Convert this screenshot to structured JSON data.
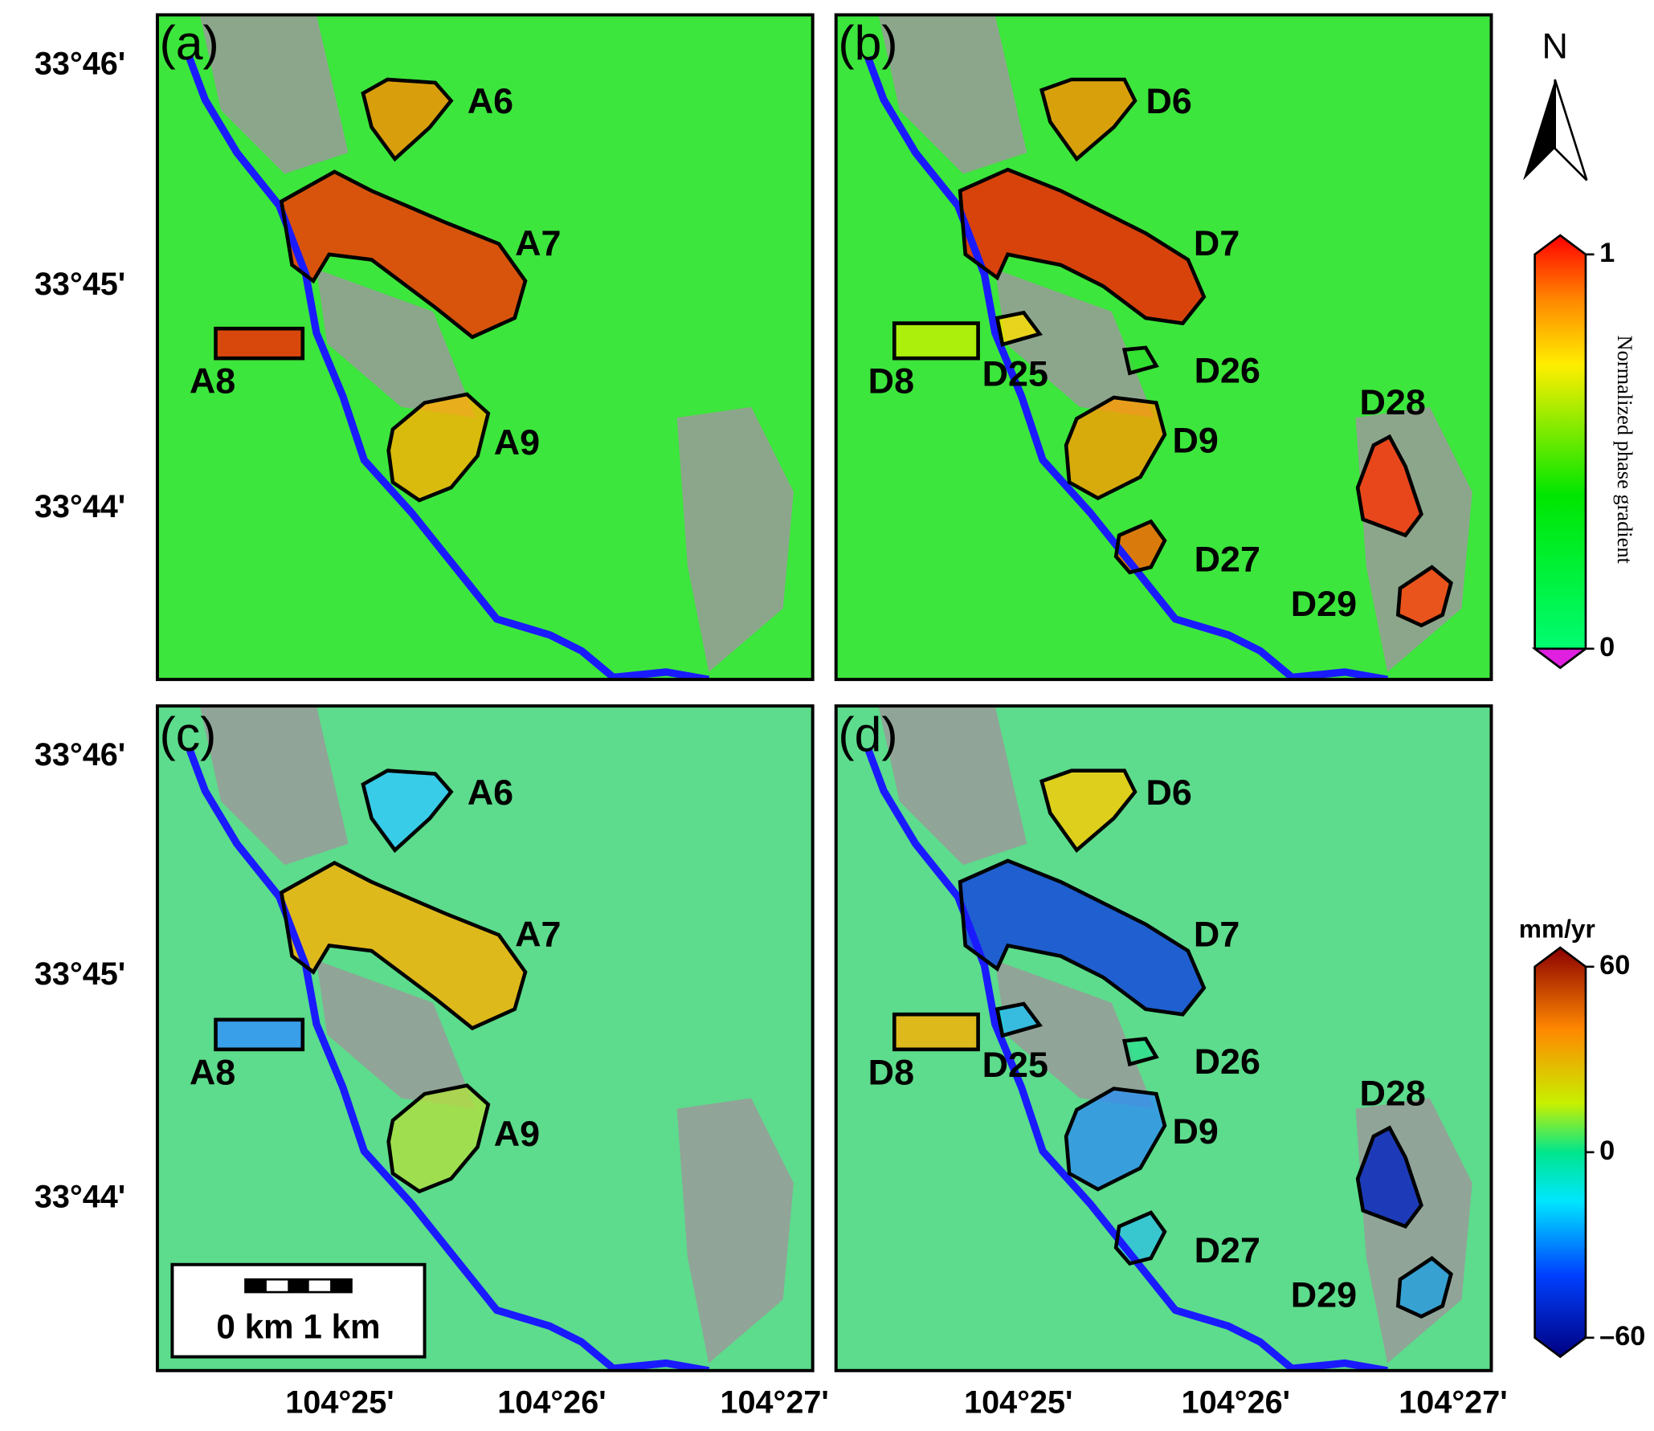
{
  "panels": [
    {
      "label": "(a)",
      "areas": [
        "A6",
        "A7",
        "A8",
        "A9"
      ]
    },
    {
      "label": "(b)",
      "areas": [
        "D6",
        "D7",
        "D8",
        "D25",
        "D26",
        "D9",
        "D28",
        "D27",
        "D29"
      ]
    },
    {
      "label": "(c)",
      "areas": [
        "A6",
        "A7",
        "A8",
        "A9"
      ]
    },
    {
      "label": "(d)",
      "areas": [
        "D6",
        "D7",
        "D8",
        "D25",
        "D26",
        "D9",
        "D28",
        "D27",
        "D29"
      ]
    }
  ],
  "latitude_labels": [
    "33°46'",
    "33°45'",
    "33°44'"
  ],
  "longitude_labels": [
    "104°25'",
    "104°26'",
    "104°27'"
  ],
  "north_label": "N",
  "gradient_colorbar": {
    "title": "Normalized phase gradient",
    "ticks": [
      1,
      0
    ]
  },
  "velocity_colorbar": {
    "unit": "mm/yr",
    "ticks": [
      60,
      0,
      {
        "value": -60,
        "label": "–60"
      }
    ]
  },
  "scale_bar": {
    "label": "0 km 1 km"
  }
}
